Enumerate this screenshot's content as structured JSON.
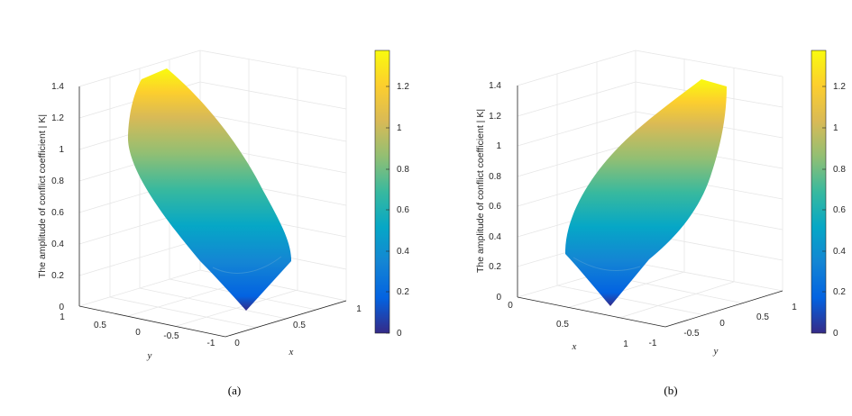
{
  "figure": {
    "panels": [
      {
        "caption": "(a)",
        "z_label": "The amplitude of conflict coefficient | K|",
        "z_ticks": [
          "0",
          "0.2",
          "0.4",
          "0.6",
          "0.8",
          "1",
          "1.2",
          "1.4"
        ],
        "y_ticks": [
          "1",
          "0.5",
          "0",
          "-0.5",
          "-1"
        ],
        "x_ticks": [
          "0",
          "0.5",
          "1"
        ],
        "y_axis_label": "y",
        "x_axis_label": "x",
        "colorbar_ticks": [
          "0",
          "0.2",
          "0.4",
          "0.6",
          "0.8",
          "1",
          "1.2"
        ]
      },
      {
        "caption": "(b)",
        "z_label": "The amplitude of conflict coefficient | K|",
        "z_ticks": [
          "0",
          "0.2",
          "0.4",
          "0.6",
          "0.8",
          "1",
          "1.2",
          "1.4"
        ],
        "x_ticks": [
          "0",
          "0.5",
          "1"
        ],
        "y_ticks": [
          "-1",
          "-0.5",
          "0",
          "0.5",
          "1"
        ],
        "x_axis_label": "x",
        "y_axis_label": "y",
        "colorbar_ticks": [
          "0",
          "0.2",
          "0.4",
          "0.6",
          "0.8",
          "1",
          "1.2"
        ]
      }
    ]
  },
  "chart_data": [
    {
      "type": "surface",
      "colormap": "parula",
      "colormap_stops": [
        "#352a87",
        "#0363e1",
        "#1485d4",
        "#06a7c6",
        "#38b99e",
        "#92bf73",
        "#d9ba56",
        "#fcce2e",
        "#f9fb0e"
      ],
      "zlim": [
        0,
        1.4
      ],
      "xlim": [
        0,
        1
      ],
      "ylim": [
        -1,
        1
      ],
      "colorbar_range": [
        0,
        1.35
      ],
      "z_min": 0,
      "z_max": 1.35,
      "view": "azimuth from (x, -y) side"
    },
    {
      "type": "surface",
      "colormap": "parula",
      "colormap_stops": [
        "#352a87",
        "#0363e1",
        "#1485d4",
        "#06a7c6",
        "#38b99e",
        "#92bf73",
        "#d9ba56",
        "#fcce2e",
        "#f9fb0e"
      ],
      "zlim": [
        0,
        1.4
      ],
      "xlim": [
        0,
        1
      ],
      "ylim": [
        -1,
        1
      ],
      "colorbar_range": [
        0,
        1.35
      ],
      "z_min": 0,
      "z_max": 1.35,
      "view": "azimuth from (x, y) side"
    }
  ]
}
